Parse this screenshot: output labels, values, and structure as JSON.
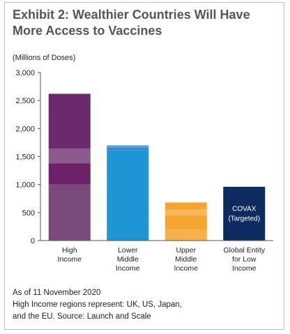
{
  "title": "Exhibit 2: Wealthier Countries Will Have More Access to Vaccines",
  "unit_label": "(Millions of Doses)",
  "notes": [
    "As of 11 November 2020",
    "High Income regions represent: UK, US, Japan,",
    "and the EU. Source: Launch and Scale"
  ],
  "chart_data": {
    "type": "bar",
    "title": "Exhibit 2: Wealthier Countries Will Have More Access to Vaccines",
    "ylabel": "(Millions of Doses)",
    "xlabel": "",
    "ylim": [
      0,
      3000
    ],
    "yticks": [
      0,
      500,
      1000,
      1500,
      2000,
      2500,
      3000
    ],
    "ytick_labels": [
      "0",
      "500",
      "1,000",
      "1,500",
      "2,000",
      "2,500",
      "3,000"
    ],
    "grid": false,
    "categories": [
      [
        "High",
        "Income"
      ],
      [
        "Lower",
        "Middle",
        "Income"
      ],
      [
        "Upper",
        "Middle",
        "Income"
      ],
      [
        "Global Entity",
        "for Low",
        "Income"
      ]
    ],
    "values": [
      2620,
      1700,
      680,
      960
    ],
    "colors": [
      "#6b2a6b",
      "#1f95d6",
      "#f6a531",
      "#0d2b5e"
    ],
    "stack_bands": [
      [
        {
          "from": 0,
          "to": 1000,
          "color": "#7a4a7a"
        },
        {
          "from": 1000,
          "to": 1380,
          "color": "#6c2168"
        },
        {
          "from": 1380,
          "to": 1640,
          "color": "#8c5a8c"
        },
        {
          "from": 1640,
          "to": 2620,
          "color": "#6b2a6b"
        }
      ],
      [
        {
          "from": 0,
          "to": 1610,
          "color": "#1f95d6"
        },
        {
          "from": 1610,
          "to": 1660,
          "color": "#3a86c8"
        },
        {
          "from": 1660,
          "to": 1700,
          "color": "#4da3dc"
        }
      ],
      [
        {
          "from": 0,
          "to": 200,
          "color": "#f7b04a"
        },
        {
          "from": 200,
          "to": 450,
          "color": "#f6a531"
        },
        {
          "from": 450,
          "to": 560,
          "color": "#f8b85a"
        },
        {
          "from": 560,
          "to": 680,
          "color": "#f6a531"
        }
      ],
      [
        {
          "from": 0,
          "to": 960,
          "color": "#0d2b5e"
        }
      ]
    ],
    "annotations": [
      {
        "category_index": 3,
        "lines": [
          "COVAX",
          "(Targeted)"
        ]
      }
    ]
  }
}
